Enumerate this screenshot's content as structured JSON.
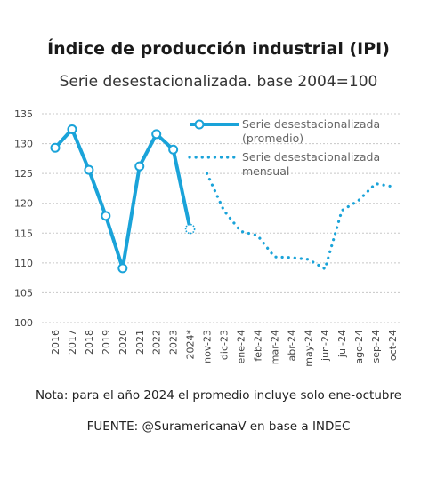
{
  "header": {
    "title": "Índice de producción industrial (IPI)",
    "subtitle": "Serie desestacionalizada. base 2004=100"
  },
  "footer": {
    "note": "Nota: para el año 2024 el promedio incluye solo ene-octubre",
    "source": "FUENTE: @SuramericanaV en base a INDEC"
  },
  "chart_data": {
    "type": "line",
    "ylim": [
      100,
      135
    ],
    "yticks": [
      100,
      105,
      110,
      115,
      120,
      125,
      130,
      135
    ],
    "grid": true,
    "legend_position": "top-right",
    "accent_color": "#1aa3d9",
    "categories": [
      "2016",
      "2017",
      "2018",
      "2019",
      "2020",
      "2021",
      "2022",
      "2023",
      "2024*",
      "nov-23",
      "dic-23",
      "ene-24",
      "feb-24",
      "mar-24",
      "abr-24",
      "may-24",
      "jun-24",
      "jul-24",
      "ago-24",
      "sep-24",
      "oct-24"
    ],
    "series": [
      {
        "name": "Serie desestacionalizada (promedio)",
        "legend_lines": [
          "Serie desestacionalizada",
          "(promedio)"
        ],
        "style": "solid-markers",
        "x": [
          "2016",
          "2017",
          "2018",
          "2019",
          "2020",
          "2021",
          "2022",
          "2023",
          "2024*"
        ],
        "values": [
          129.3,
          132.4,
          125.6,
          117.9,
          109.1,
          126.2,
          131.6,
          129.0,
          115.7
        ]
      },
      {
        "name": "Serie desestacionalizada mensual",
        "legend_lines": [
          "Serie desestacionalizada",
          "mensual"
        ],
        "style": "dotted",
        "x": [
          "nov-23",
          "dic-23",
          "ene-24",
          "feb-24",
          "mar-24",
          "abr-24",
          "may-24",
          "jun-24",
          "jul-24",
          "ago-24",
          "sep-24",
          "oct-24"
        ],
        "values": [
          125.0,
          118.8,
          115.3,
          114.6,
          111.0,
          110.9,
          110.6,
          109.0,
          118.8,
          120.5,
          123.3,
          122.8
        ]
      }
    ]
  }
}
